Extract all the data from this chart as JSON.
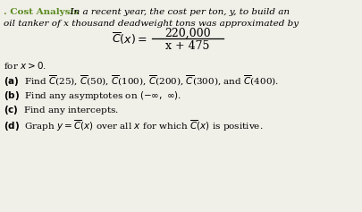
{
  "background_color": "#f0efe8",
  "title_bold": ". Cost Analysis",
  "title_color": "#5a8a1f",
  "intro_text": "  In a recent year, the cost per ton, y, to build an",
  "line2_text": "oil tanker of x thousand deadweight tons was approximated by",
  "formula_numerator": "220,000",
  "formula_denominator": "x + 475",
  "for_x_text": "for x > 0.",
  "part_a": "(a)  Find $\\overline{C}$(25), $\\overline{C}$(50), $\\overline{C}$(100), $\\overline{C}$(200), $\\overline{C}$(300), and $\\overline{C}$(400).",
  "part_b": "(b)  Find any asymptotes on $(-\\infty,\\ \\infty)$.",
  "part_c": "(c)  Find any intercepts.",
  "part_d": "(d)  Graph y = $\\overline{C}$(x) over all x for which $\\overline{C}$(x) is positive.",
  "font_size_body": 7.5,
  "font_size_formula": 9.0,
  "fig_width": 4.05,
  "fig_height": 2.37,
  "dpi": 100
}
